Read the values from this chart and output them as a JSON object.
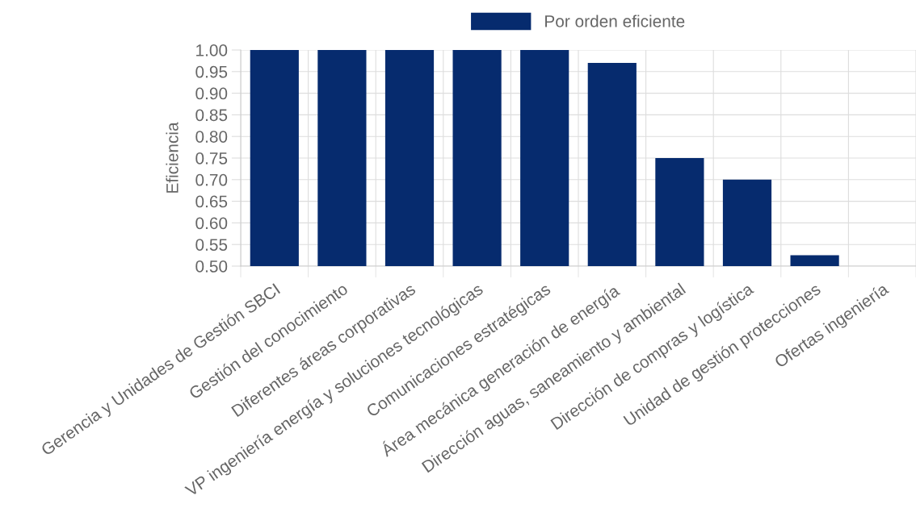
{
  "chart_data": {
    "type": "bar",
    "ylabel": "Eficiencia",
    "categories": [
      "Gerencia y Unidades de Gestión SBCI",
      "Gestión del conocimiento",
      "Diferentes áreas corporativas",
      "VP ingeniería energía y soluciones tecnológicas",
      "Comunicaciones estratégicas",
      "Área mecánica generación de energía",
      "Dirección aguas, saneamiento y ambiental",
      "Dirección de compras y logística",
      "Unidad de gestión protecciones",
      "Ofertas ingeniería"
    ],
    "series": [
      {
        "name": "Por orden eficiente",
        "color": "#062b6e",
        "values": [
          1.0,
          1.0,
          1.0,
          1.0,
          1.0,
          0.97,
          0.75,
          0.7,
          0.525,
          null
        ]
      }
    ],
    "ylim": [
      0.5,
      1.0
    ],
    "yticks": [
      {
        "value": 0.5,
        "label": "0.50"
      },
      {
        "value": 0.55,
        "label": "0.55"
      },
      {
        "value": 0.6,
        "label": "0.60"
      },
      {
        "value": 0.65,
        "label": "0.65"
      },
      {
        "value": 0.7,
        "label": "0.70"
      },
      {
        "value": 0.75,
        "label": "0.75"
      },
      {
        "value": 0.8,
        "label": "0.80"
      },
      {
        "value": 0.85,
        "label": "0.85"
      },
      {
        "value": 0.9,
        "label": "0.90"
      },
      {
        "value": 0.95,
        "label": "0.95"
      },
      {
        "value": 1.0,
        "label": "1.00"
      }
    ],
    "grid": true,
    "legend": "top"
  }
}
